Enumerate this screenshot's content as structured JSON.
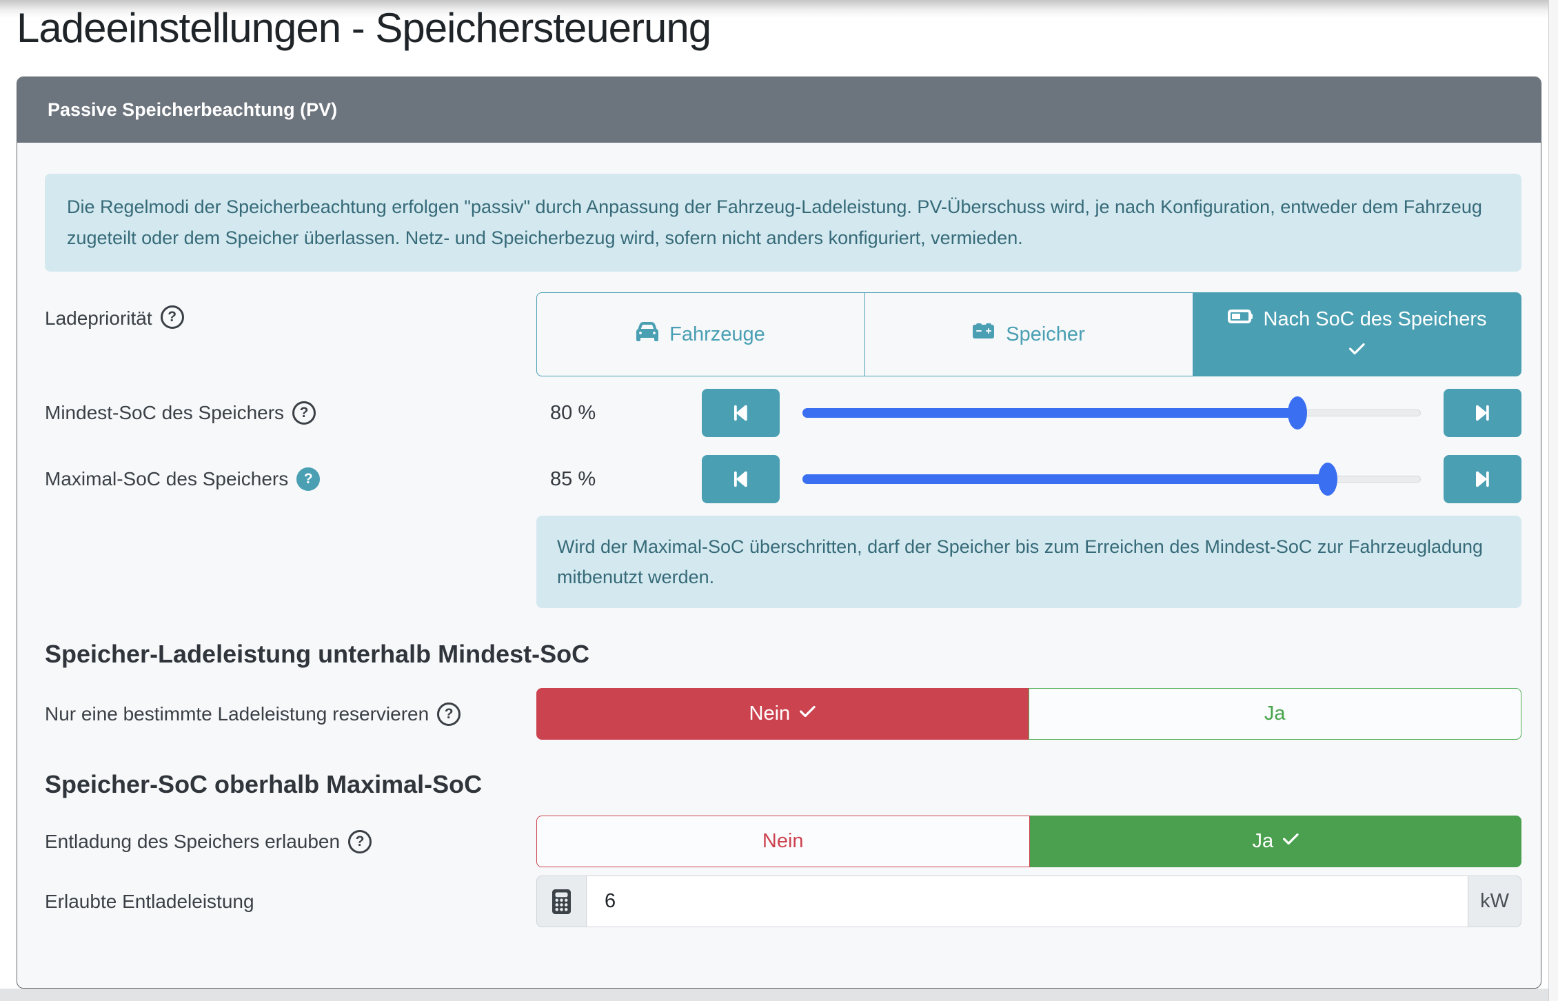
{
  "page": {
    "title": "Ladeeinstellungen - Speichersteuerung"
  },
  "card": {
    "header_title": "Passive Speicherbeachtung (PV)",
    "intro_text": "Die Regelmodi der Speicherbeachtung erfolgen \"passiv\" durch Anpassung der Fahrzeug-Ladeleistung. PV-Überschuss wird, je nach Konfiguration, entweder dem Fahrzeug zugeteilt oder dem Speicher überlassen. Netz- und Speicherbezug wird, sofern nicht anders konfiguriert, vermieden."
  },
  "icons": {
    "help": "?"
  },
  "charge_priority": {
    "label": "Ladepriorität",
    "options": [
      {
        "label": "Fahrzeuge",
        "icon": "car-icon",
        "selected": false
      },
      {
        "label": "Speicher",
        "icon": "car-battery-icon",
        "selected": false
      },
      {
        "label": "Nach SoC des Speichers",
        "icon": "battery-half-icon",
        "selected": true
      }
    ]
  },
  "min_soc": {
    "label": "Mindest-SoC des Speichers",
    "value_text": "80 %",
    "percent": 80
  },
  "max_soc": {
    "label": "Maximal-SoC des Speichers",
    "value_text": "85 %",
    "percent": 85
  },
  "soc_note": "Wird der Maximal-SoC überschritten, darf der Speicher bis zum Erreichen des Mindest-SoC zur Fahrzeugladung mitbenutzt werden.",
  "reserve_section": {
    "heading": "Speicher-Ladeleistung unterhalb Mindest-SoC",
    "label": "Nur eine bestimmte Ladeleistung reservieren",
    "no_label": "Nein",
    "yes_label": "Ja",
    "selected": "Nein"
  },
  "discharge_section": {
    "heading": "Speicher-SoC oberhalb Maximal-SoC",
    "allow_label": "Entladung des Speichers erlauben",
    "no_label": "Nein",
    "yes_label": "Ja",
    "selected": "Ja",
    "power_label": "Erlaubte Entladeleistung",
    "power_value": "6",
    "power_unit": "kW"
  },
  "colors": {
    "accent_teal": "#4a9fb3",
    "header_gray": "#6c747d",
    "info_bg": "#d4e9ef",
    "info_text": "#366a79",
    "danger_red": "#cc4350",
    "success_green": "#4aa04e",
    "slider_blue": "#3a6ff2"
  }
}
